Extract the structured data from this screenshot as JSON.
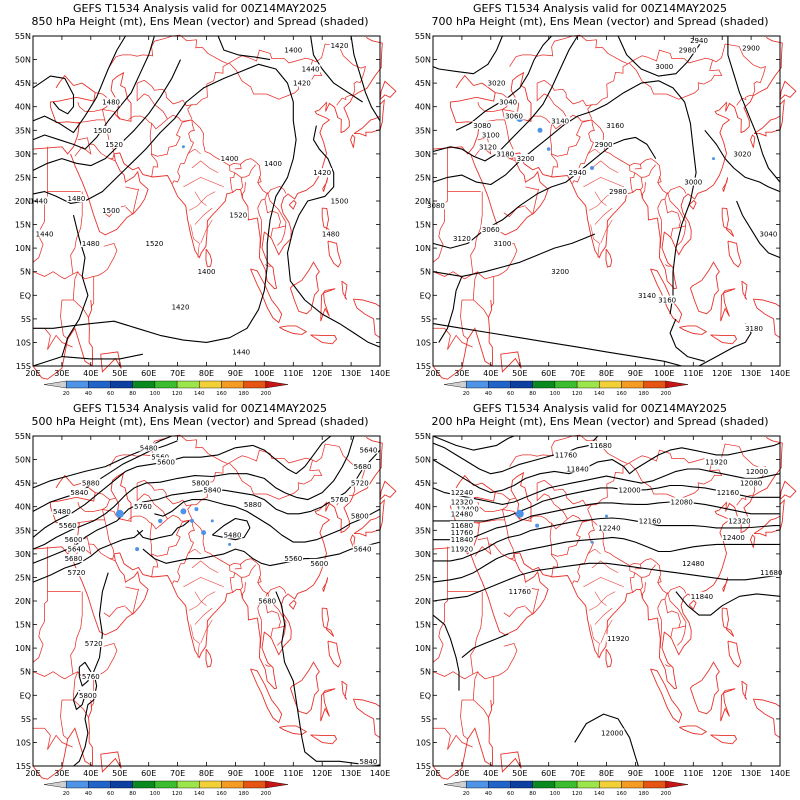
{
  "panels": [
    {
      "id": "p850",
      "title_line1": "GEFS T1534 Analysis valid for 00Z14MAY2025",
      "title_line2": "850 hPa Height (mt), Ens Mean (vector) and Spread (shaded)",
      "contour_labels": [
        "1400",
        "1420",
        "1440",
        "1480",
        "1500",
        "1520"
      ]
    },
    {
      "id": "p700",
      "title_line1": "GEFS T1534 Analysis valid for 00Z14MAY2025",
      "title_line2": "700 hPa Height (mt), Ens Mean (vector) and Spread (shaded)",
      "contour_labels": [
        "2900",
        "2940",
        "2980",
        "3000",
        "3020",
        "3040",
        "3060",
        "3080",
        "3100",
        "3120",
        "3140",
        "3160",
        "3180",
        "3200"
      ]
    },
    {
      "id": "p500",
      "title_line1": "GEFS T1534 Analysis valid for 00Z14MAY2025",
      "title_line2": "500 hPa Height (mt), Ens Mean (vector) and Spread (shaded)",
      "contour_labels": [
        "5480",
        "5560",
        "5600",
        "5640",
        "5680",
        "5720",
        "5760",
        "5800",
        "5840",
        "5880"
      ]
    },
    {
      "id": "p200",
      "title_line1": "GEFS T1534 Analysis valid for 00Z14MAY2025",
      "title_line2": "200 hPa Height (mt), Ens Mean (vector) and Spread (shaded)",
      "contour_labels": [
        "11680",
        "11760",
        "11840",
        "11920",
        "12000",
        "12080",
        "12160",
        "12240",
        "12320",
        "12400",
        "12480"
      ]
    }
  ],
  "axes": {
    "lon_ticks": [
      "20E",
      "30E",
      "40E",
      "50E",
      "60E",
      "70E",
      "80E",
      "90E",
      "100E",
      "110E",
      "120E",
      "130E",
      "140E"
    ],
    "lat_ticks": [
      "55N",
      "50N",
      "45N",
      "40N",
      "35N",
      "30N",
      "25N",
      "20N",
      "15N",
      "10N",
      "5N",
      "EQ",
      "5S",
      "10S",
      "15S"
    ]
  },
  "colorbar": {
    "labels": [
      "20",
      "40",
      "60",
      "80",
      "100",
      "120",
      "140",
      "160",
      "180",
      "200"
    ],
    "colors": [
      "#cfcfcf",
      "#4f93e6",
      "#1f64c8",
      "#0d3fa0",
      "#0a8a1e",
      "#3bbf2e",
      "#9be64b",
      "#f2d138",
      "#f59b22",
      "#e65414",
      "#c81414"
    ]
  },
  "map_colors": {
    "coast": "#e8302a",
    "contour": "#000000"
  }
}
